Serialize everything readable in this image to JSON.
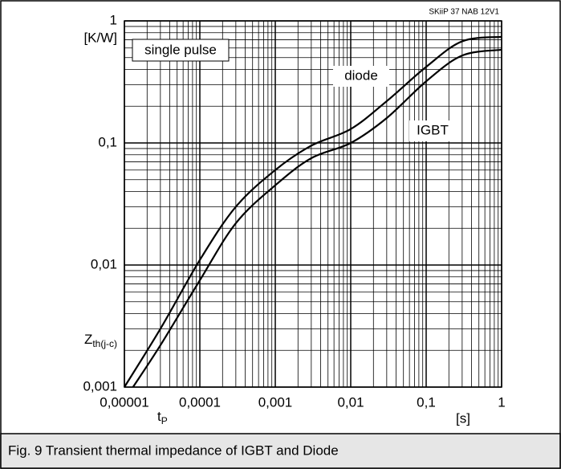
{
  "chart_data": {
    "type": "line",
    "header": "SKiiP 37 NAB 12V1",
    "caption": "Fig. 9 Transient thermal impedance of IGBT and Diode",
    "ylabel": {
      "main": "Z",
      "sub": "th(j-c)"
    },
    "yunit": "[K/W]",
    "xlabel": {
      "main": "t",
      "sub": "P"
    },
    "xunit": "[s]",
    "annotation": "single pulse",
    "xscale": "log",
    "yscale": "log",
    "grid": true,
    "xlim": [
      1e-05,
      1
    ],
    "ylim": [
      0.001,
      1
    ],
    "xticks": [
      {
        "value": 1e-05,
        "label": "0,00001"
      },
      {
        "value": 0.0001,
        "label": "0,0001"
      },
      {
        "value": 0.001,
        "label": "0,001"
      },
      {
        "value": 0.01,
        "label": "0,01"
      },
      {
        "value": 0.1,
        "label": "0,1"
      },
      1
    ],
    "yticks": [
      {
        "value": 0.001,
        "label": "0,001"
      },
      {
        "value": 0.01,
        "label": "0,01"
      },
      {
        "value": 0.1,
        "label": "0,1"
      },
      1
    ],
    "series": [
      {
        "name": "diode",
        "color": "#000000",
        "x": [
          1e-05,
          3e-05,
          0.0001,
          0.0003,
          0.001,
          0.003,
          0.01,
          0.03,
          0.1,
          0.3,
          1
        ],
        "values": [
          0.001,
          0.003,
          0.011,
          0.03,
          0.06,
          0.095,
          0.13,
          0.22,
          0.42,
          0.68,
          0.74
        ]
      },
      {
        "name": "IGBT",
        "color": "#000000",
        "x": [
          1.3e-05,
          3e-05,
          0.0001,
          0.0003,
          0.001,
          0.003,
          0.01,
          0.03,
          0.1,
          0.3,
          1
        ],
        "values": [
          0.001,
          0.0022,
          0.0075,
          0.022,
          0.045,
          0.075,
          0.1,
          0.16,
          0.32,
          0.52,
          0.58
        ]
      }
    ]
  }
}
